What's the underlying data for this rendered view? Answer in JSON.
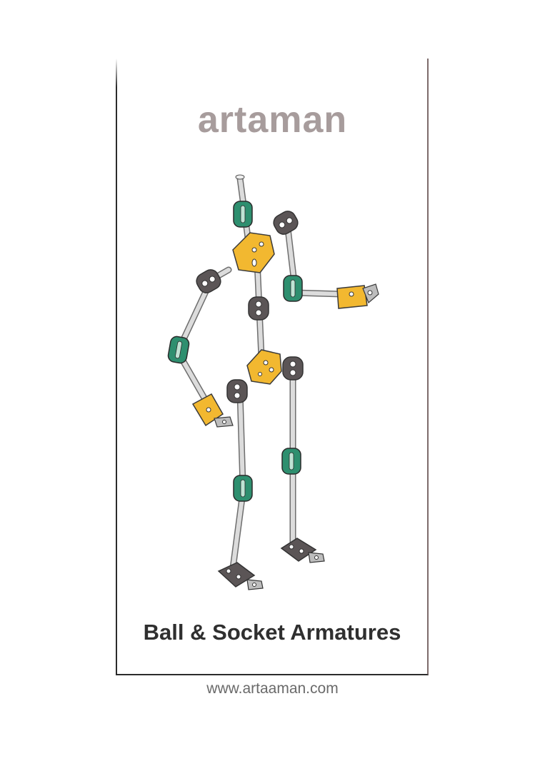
{
  "poster": {
    "brand": "artaman",
    "subtitle": "Ball & Socket Armatures",
    "url": "www.artaaman.com"
  },
  "illustration": {
    "subject": "armature-figure",
    "colors": {
      "rod": "#d9d9d9",
      "rod_outline": "#6e6e6e",
      "joint_dark": "#5b5556",
      "joint_green": "#2e8f6f",
      "plate_yellow": "#f2b830",
      "outline": "#3a3a3a"
    }
  }
}
